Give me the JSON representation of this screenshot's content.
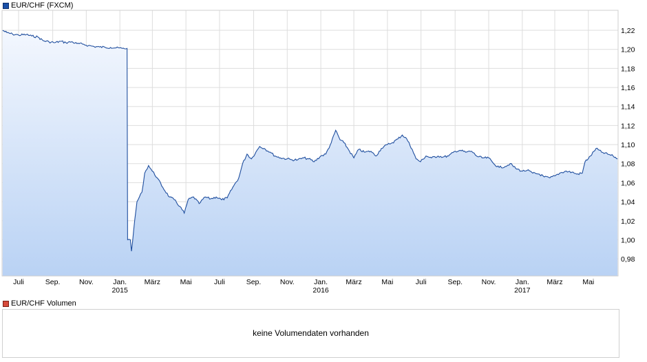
{
  "legend": {
    "price_label": "EUR/CHF (FXCM)",
    "volume_label": "EUR/CHF Volumen"
  },
  "volume_panel": {
    "message": "keine Volumendaten vorhanden"
  },
  "colors": {
    "line": "#1f4e9e",
    "fill_top": "#f3f7fe",
    "fill_bottom": "#b9d2f4",
    "grid": "#dddddd",
    "frame": "#cfcfcf"
  },
  "chart_data": {
    "type": "area",
    "series": [
      {
        "name": "EUR/CHF (FXCM)",
        "points": [
          [
            "2014-06-02",
            1.22
          ],
          [
            "2014-06-10",
            1.2175
          ],
          [
            "2014-06-20",
            1.216
          ],
          [
            "2014-07-01",
            1.215
          ],
          [
            "2014-07-15",
            1.2155
          ],
          [
            "2014-07-25",
            1.214
          ],
          [
            "2014-08-05",
            1.213
          ],
          [
            "2014-08-15",
            1.209
          ],
          [
            "2014-08-25",
            1.208
          ],
          [
            "2014-09-05",
            1.207
          ],
          [
            "2014-09-15",
            1.2085
          ],
          [
            "2014-09-25",
            1.207
          ],
          [
            "2014-10-05",
            1.208
          ],
          [
            "2014-10-15",
            1.206
          ],
          [
            "2014-10-25",
            1.2055
          ],
          [
            "2014-11-05",
            1.204
          ],
          [
            "2014-11-15",
            1.203
          ],
          [
            "2014-11-25",
            1.2025
          ],
          [
            "2014-12-05",
            1.2022
          ],
          [
            "2014-12-15",
            1.202
          ],
          [
            "2014-12-25",
            1.2015
          ],
          [
            "2015-01-05",
            1.201
          ],
          [
            "2015-01-14",
            1.201
          ],
          [
            "2015-01-15",
            1.0
          ],
          [
            "2015-01-20",
            1.0
          ],
          [
            "2015-01-22",
            0.988
          ],
          [
            "2015-01-26",
            1.01
          ],
          [
            "2015-02-01",
            1.04
          ],
          [
            "2015-02-10",
            1.05
          ],
          [
            "2015-02-15",
            1.07
          ],
          [
            "2015-02-22",
            1.078
          ],
          [
            "2015-03-01",
            1.072
          ],
          [
            "2015-03-10",
            1.065
          ],
          [
            "2015-03-20",
            1.055
          ],
          [
            "2015-04-01",
            1.045
          ],
          [
            "2015-04-10",
            1.042
          ],
          [
            "2015-04-20",
            1.035
          ],
          [
            "2015-04-28",
            1.028
          ],
          [
            "2015-05-05",
            1.042
          ],
          [
            "2015-05-15",
            1.045
          ],
          [
            "2015-05-25",
            1.038
          ],
          [
            "2015-06-05",
            1.045
          ],
          [
            "2015-06-15",
            1.043
          ],
          [
            "2015-06-25",
            1.045
          ],
          [
            "2015-07-05",
            1.042
          ],
          [
            "2015-07-15",
            1.044
          ],
          [
            "2015-07-25",
            1.055
          ],
          [
            "2015-08-05",
            1.065
          ],
          [
            "2015-08-12",
            1.08
          ],
          [
            "2015-08-20",
            1.09
          ],
          [
            "2015-08-28",
            1.085
          ],
          [
            "2015-09-05",
            1.092
          ],
          [
            "2015-09-12",
            1.098
          ],
          [
            "2015-09-20",
            1.096
          ],
          [
            "2015-10-01",
            1.092
          ],
          [
            "2015-10-10",
            1.088
          ],
          [
            "2015-10-20",
            1.086
          ],
          [
            "2015-11-01",
            1.085
          ],
          [
            "2015-11-10",
            1.084
          ],
          [
            "2015-11-20",
            1.084
          ],
          [
            "2015-12-01",
            1.086
          ],
          [
            "2015-12-10",
            1.085
          ],
          [
            "2015-12-20",
            1.082
          ],
          [
            "2016-01-01",
            1.088
          ],
          [
            "2016-01-10",
            1.09
          ],
          [
            "2016-01-20",
            1.102
          ],
          [
            "2016-01-28",
            1.115
          ],
          [
            "2016-02-05",
            1.105
          ],
          [
            "2016-02-12",
            1.102
          ],
          [
            "2016-02-20",
            1.095
          ],
          [
            "2016-03-01",
            1.086
          ],
          [
            "2016-03-10",
            1.095
          ],
          [
            "2016-03-20",
            1.092
          ],
          [
            "2016-04-01",
            1.093
          ],
          [
            "2016-04-10",
            1.088
          ],
          [
            "2016-04-20",
            1.096
          ],
          [
            "2016-05-01",
            1.1
          ],
          [
            "2016-05-10",
            1.102
          ],
          [
            "2016-05-20",
            1.106
          ],
          [
            "2016-05-28",
            1.11
          ],
          [
            "2016-06-05",
            1.106
          ],
          [
            "2016-06-15",
            1.095
          ],
          [
            "2016-06-22",
            1.085
          ],
          [
            "2016-06-30",
            1.082
          ],
          [
            "2016-07-10",
            1.088
          ],
          [
            "2016-07-20",
            1.086
          ],
          [
            "2016-08-01",
            1.088
          ],
          [
            "2016-08-10",
            1.087
          ],
          [
            "2016-08-20",
            1.088
          ],
          [
            "2016-09-01",
            1.093
          ],
          [
            "2016-09-10",
            1.094
          ],
          [
            "2016-09-20",
            1.092
          ],
          [
            "2016-10-01",
            1.093
          ],
          [
            "2016-10-10",
            1.088
          ],
          [
            "2016-10-20",
            1.086
          ],
          [
            "2016-11-01",
            1.086
          ],
          [
            "2016-11-10",
            1.08
          ],
          [
            "2016-11-20",
            1.076
          ],
          [
            "2016-12-01",
            1.077
          ],
          [
            "2016-12-10",
            1.08
          ],
          [
            "2016-12-20",
            1.075
          ],
          [
            "2017-01-01",
            1.072
          ],
          [
            "2017-01-10",
            1.073
          ],
          [
            "2017-01-20",
            1.07
          ],
          [
            "2017-02-01",
            1.069
          ],
          [
            "2017-02-10",
            1.066
          ],
          [
            "2017-02-20",
            1.065
          ],
          [
            "2017-03-01",
            1.067
          ],
          [
            "2017-03-10",
            1.07
          ],
          [
            "2017-03-20",
            1.072
          ],
          [
            "2017-04-01",
            1.071
          ],
          [
            "2017-04-10",
            1.069
          ],
          [
            "2017-04-20",
            1.07
          ],
          [
            "2017-04-25",
            1.082
          ],
          [
            "2017-05-05",
            1.088
          ],
          [
            "2017-05-15",
            1.096
          ],
          [
            "2017-05-25",
            1.092
          ],
          [
            "2017-06-05",
            1.09
          ],
          [
            "2017-06-15",
            1.088
          ],
          [
            "2017-06-23",
            1.085
          ]
        ]
      }
    ],
    "y_ticks": [
      "1,22",
      "1,20",
      "1,18",
      "1,16",
      "1,14",
      "1,12",
      "1,10",
      "1,08",
      "1,06",
      "1,04",
      "1,02",
      "1,00",
      "0,98"
    ],
    "ylim": [
      0.962,
      1.241
    ],
    "xlim": [
      "2014-06-01",
      "2017-06-24"
    ],
    "x_ticks": [
      {
        "date": "2014-07-01",
        "label": "Juli",
        "year": ""
      },
      {
        "date": "2014-09-01",
        "label": "Sep.",
        "year": ""
      },
      {
        "date": "2014-11-01",
        "label": "Nov.",
        "year": ""
      },
      {
        "date": "2015-01-01",
        "label": "Jan.",
        "year": "2015"
      },
      {
        "date": "2015-03-01",
        "label": "März",
        "year": ""
      },
      {
        "date": "2015-05-01",
        "label": "Mai",
        "year": ""
      },
      {
        "date": "2015-07-01",
        "label": "Juli",
        "year": ""
      },
      {
        "date": "2015-09-01",
        "label": "Sep.",
        "year": ""
      },
      {
        "date": "2015-11-01",
        "label": "Nov.",
        "year": ""
      },
      {
        "date": "2016-01-01",
        "label": "Jan.",
        "year": "2016"
      },
      {
        "date": "2016-03-01",
        "label": "März",
        "year": ""
      },
      {
        "date": "2016-05-01",
        "label": "Mai",
        "year": ""
      },
      {
        "date": "2016-07-01",
        "label": "Juli",
        "year": ""
      },
      {
        "date": "2016-09-01",
        "label": "Sep.",
        "year": ""
      },
      {
        "date": "2016-11-01",
        "label": "Nov.",
        "year": ""
      },
      {
        "date": "2017-01-01",
        "label": "Jan.",
        "year": "2017"
      },
      {
        "date": "2017-03-01",
        "label": "März",
        "year": ""
      },
      {
        "date": "2017-05-01",
        "label": "Mai",
        "year": ""
      }
    ],
    "grid": true,
    "legend": "top-left"
  }
}
